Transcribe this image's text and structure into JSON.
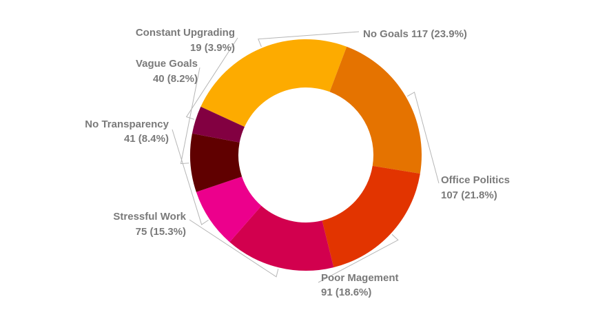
{
  "chart_data": {
    "type": "pie",
    "donut": true,
    "legend": "none",
    "slices": [
      {
        "label": "No Goals",
        "value": 117,
        "percent": "23.9%",
        "color": "#FDAB00"
      },
      {
        "label": "Office Politics",
        "value": 107,
        "percent": "21.8%",
        "color": "#E57300"
      },
      {
        "label": "Poor Magement",
        "value": 91,
        "percent": "18.6%",
        "color": "#E23400"
      },
      {
        "label": "Stressful Work",
        "value": 75,
        "percent": "15.3%",
        "color": "#D2004E"
      },
      {
        "label": "No Transparency",
        "value": 41,
        "percent": "8.4%",
        "color": "#EC008C"
      },
      {
        "label": "Vague Goals",
        "value": 40,
        "percent": "8.2%",
        "color": "#600000"
      },
      {
        "label": "Constant Upgrading",
        "value": 19,
        "percent": "3.9%",
        "color": "#820041"
      }
    ],
    "data_labels": [
      {
        "line1": "No Goals 117 (23.9%)",
        "line2": ""
      },
      {
        "line1": "Office Politics",
        "line2": "107 (21.8%)"
      },
      {
        "line1": "Poor Magement",
        "line2": "91 (18.6%)"
      },
      {
        "line1": "Stressful Work",
        "line2": "75 (15.3%)"
      },
      {
        "line1": "No Transparency",
        "line2": "41 (8.4%)"
      },
      {
        "line1": "Vague Goals",
        "line2": "40 (8.2%)"
      },
      {
        "line1": "Constant Upgrading",
        "line2": "19 (3.9%)"
      }
    ]
  }
}
